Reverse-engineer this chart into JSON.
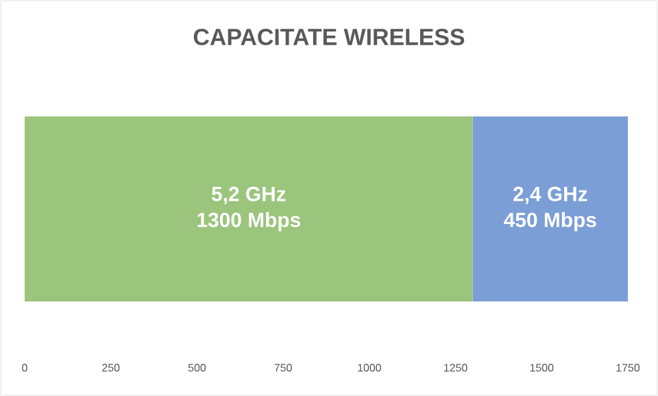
{
  "chart_data": {
    "type": "bar",
    "title": "CAPACITATE WIRELESS",
    "orientation": "horizontal",
    "stacked": true,
    "categories": [
      null
    ],
    "series": [
      {
        "name": "5,2 GHz",
        "color": "#9bc47c",
        "values": [
          1300
        ],
        "value_labels": [
          "1300 Mbps"
        ]
      },
      {
        "name": "2,4 GHz",
        "color": "#7b9ed6",
        "values": [
          450
        ],
        "value_labels": [
          "450 Mbps"
        ]
      }
    ],
    "xlim": [
      0,
      1750
    ],
    "xticks": [
      0,
      250,
      500,
      750,
      1000,
      1250,
      1500,
      1750
    ],
    "grid": false
  }
}
